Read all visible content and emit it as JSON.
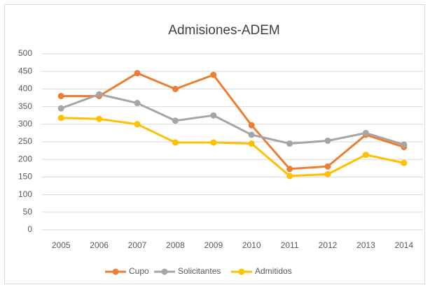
{
  "chart_data": {
    "type": "line",
    "title": "Admisiones-ADEM",
    "categories": [
      "2005",
      "2006",
      "2007",
      "2008",
      "2009",
      "2010",
      "2011",
      "2012",
      "2013",
      "2014"
    ],
    "series": [
      {
        "name": "Cupo",
        "color": "#ed7d31",
        "values": [
          380,
          380,
          445,
          400,
          440,
          297,
          173,
          180,
          270,
          235
        ]
      },
      {
        "name": "Solicitantes",
        "color": "#a5a5a5",
        "values": [
          345,
          385,
          360,
          310,
          325,
          270,
          245,
          253,
          275,
          242
        ]
      },
      {
        "name": "Admitidos",
        "color": "#ffc000",
        "values": [
          318,
          315,
          300,
          248,
          248,
          245,
          153,
          158,
          213,
          190
        ]
      }
    ],
    "ylim": [
      0,
      500
    ],
    "yticks": [
      0,
      50,
      100,
      150,
      200,
      250,
      300,
      350,
      400,
      450,
      500
    ],
    "grid": true,
    "legend": "bottom"
  }
}
